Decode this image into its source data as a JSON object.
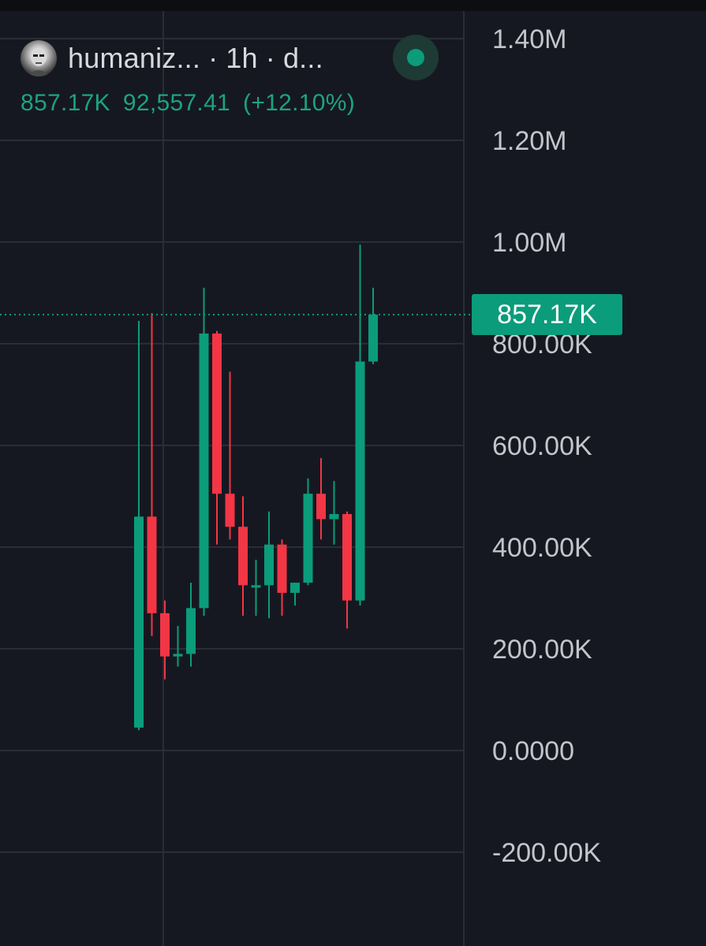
{
  "header": {
    "symbol": "humaniz...",
    "interval": "1h",
    "exchange": "d...",
    "separator": "·",
    "status": "live"
  },
  "ohlc": {
    "last": "857.17K",
    "change": "92,557.41",
    "change_pct": "(+12.10%)"
  },
  "price_tag": "857.17K",
  "colors": {
    "up": "#0b9c7b",
    "down": "#f23645",
    "grid": "#2a2d37",
    "axis_text": "#c2c5cc",
    "background": "#161821"
  },
  "chart_data": {
    "type": "candlestick",
    "y_axis": {
      "ticks": [
        1400000,
        1200000,
        1000000,
        800000,
        600000,
        400000,
        200000,
        0,
        -200000
      ],
      "tick_labels": [
        "1.40M",
        "1.20M",
        "1.00M",
        "800.00K",
        "600.00K",
        "400.00K",
        "200.00K",
        "0.0000",
        "-200.00K"
      ],
      "range": [
        -250000,
        1500000
      ],
      "position": "right"
    },
    "last_price": 857170,
    "grid": true,
    "candles": [
      {
        "o": 45000,
        "h": 845000,
        "l": 40000,
        "c": 460000
      },
      {
        "o": 460000,
        "h": 860000,
        "l": 225000,
        "c": 270000
      },
      {
        "o": 270000,
        "h": 295000,
        "l": 140000,
        "c": 185000
      },
      {
        "o": 185000,
        "h": 245000,
        "l": 165000,
        "c": 190000
      },
      {
        "o": 190000,
        "h": 330000,
        "l": 165000,
        "c": 280000
      },
      {
        "o": 280000,
        "h": 910000,
        "l": 265000,
        "c": 820000
      },
      {
        "o": 820000,
        "h": 825000,
        "l": 405000,
        "c": 505000
      },
      {
        "o": 505000,
        "h": 745000,
        "l": 415000,
        "c": 440000
      },
      {
        "o": 440000,
        "h": 500000,
        "l": 265000,
        "c": 325000
      },
      {
        "o": 325000,
        "h": 375000,
        "l": 265000,
        "c": 325000
      },
      {
        "o": 325000,
        "h": 470000,
        "l": 260000,
        "c": 405000
      },
      {
        "o": 405000,
        "h": 415000,
        "l": 265000,
        "c": 310000
      },
      {
        "o": 310000,
        "h": 330000,
        "l": 285000,
        "c": 330000
      },
      {
        "o": 330000,
        "h": 535000,
        "l": 325000,
        "c": 505000
      },
      {
        "o": 505000,
        "h": 575000,
        "l": 415000,
        "c": 455000
      },
      {
        "o": 455000,
        "h": 530000,
        "l": 405000,
        "c": 465000
      },
      {
        "o": 465000,
        "h": 470000,
        "l": 240000,
        "c": 295000
      },
      {
        "o": 295000,
        "h": 995000,
        "l": 285000,
        "c": 765000
      },
      {
        "o": 765000,
        "h": 910000,
        "l": 760000,
        "c": 857170
      }
    ]
  }
}
